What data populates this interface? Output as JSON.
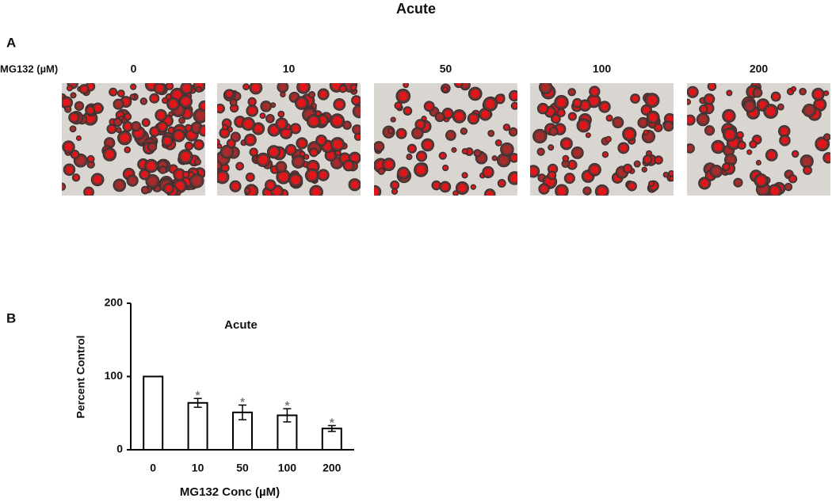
{
  "title": "Acute",
  "panel_a": {
    "label": "A",
    "row_label": "MG132 (µM)",
    "columns": [
      "0",
      "10",
      "50",
      "100",
      "200"
    ]
  },
  "chart_data": {
    "type": "bar",
    "panel_label": "B",
    "title": "Acute",
    "y_label": "Percent Control",
    "x_label": "MG132 Conc (µM)",
    "categories": [
      "0",
      "10",
      "50",
      "100",
      "200"
    ],
    "values": [
      100,
      64,
      51,
      47,
      29
    ],
    "errors": [
      0,
      6,
      10,
      9,
      4
    ],
    "significance_marks": [
      null,
      "*",
      "*",
      "*",
      "*"
    ],
    "color": "#ffffff",
    "ylim": [
      0,
      200
    ],
    "yticks": [
      0,
      100,
      200
    ]
  }
}
